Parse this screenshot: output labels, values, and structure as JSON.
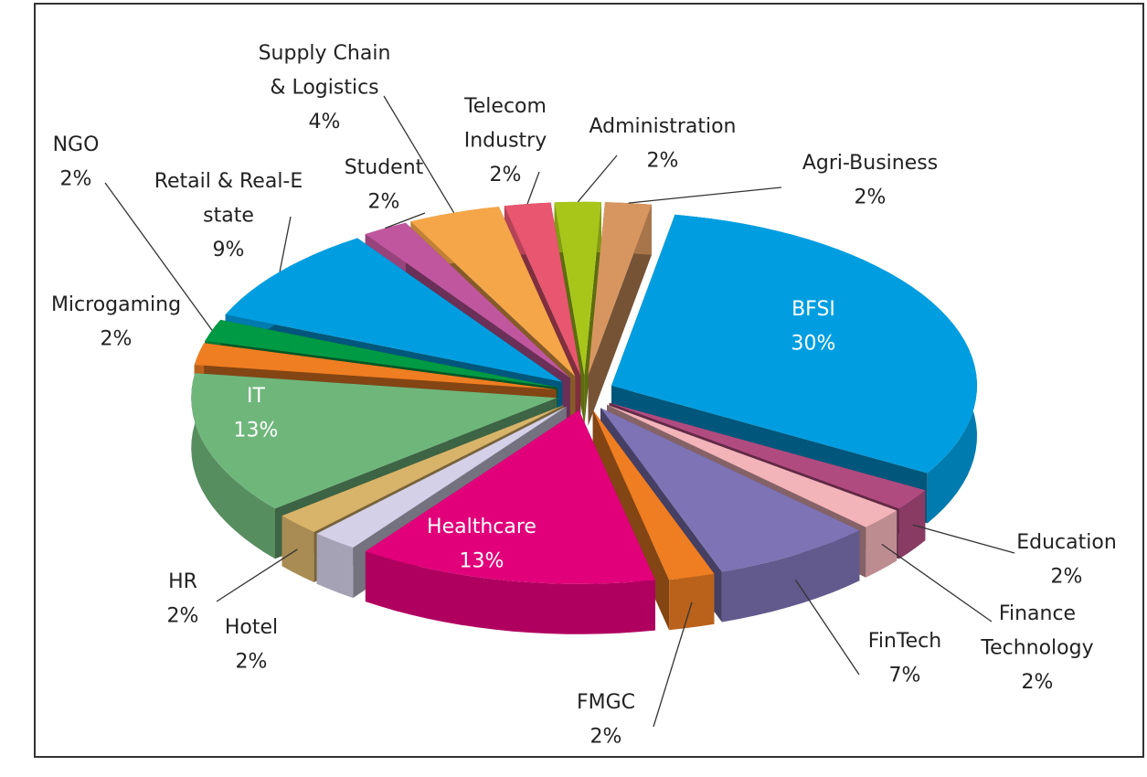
{
  "chart_data": {
    "type": "pie",
    "categories": [
      "BFSI",
      "Education",
      "Finance Technology",
      "FinTech",
      "FMGC",
      "Healthcare",
      "Hotel",
      "HR",
      "IT",
      "Microgaming",
      "NGO",
      "Retail & Real-Estate",
      "Student",
      "Supply Chain & Logistics",
      "Telecom Industry",
      "Administration",
      "Agri-Business"
    ],
    "values": [
      30,
      2,
      2,
      7,
      2,
      13,
      2,
      2,
      13,
      2,
      2,
      9,
      2,
      4,
      2,
      2,
      2
    ],
    "value_labels": [
      "30%",
      "2%",
      "2%",
      "7%",
      "2%",
      "13%",
      "2%",
      "2%",
      "13%",
      "2%",
      "2%",
      "9%",
      "2%",
      "4%",
      "2%",
      "2%",
      "2%"
    ],
    "colors": [
      "#009ee0",
      "#b04b80",
      "#f2b3b9",
      "#7e73b4",
      "#ef7d22",
      "#e2007a",
      "#d4d0e8",
      "#d8b46a",
      "#6fb67b",
      "#ef7d22",
      "#009a44",
      "#009ee0",
      "#c0579e",
      "#f5a648",
      "#e85670",
      "#a8c61a",
      "#d79660"
    ]
  }
}
